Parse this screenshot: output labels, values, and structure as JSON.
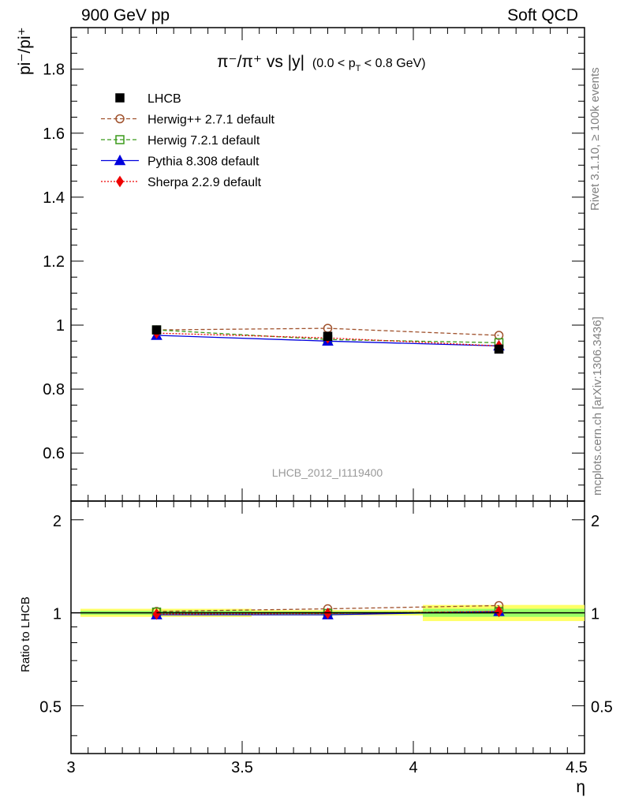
{
  "header": {
    "left": "900 GeV pp",
    "right": "Soft QCD"
  },
  "side_labels": {
    "rivet": "Rivet 3.1.10, ≥ 100k events",
    "mcplots": "mcplots.cern.ch [arXiv:1306.3436]"
  },
  "watermark": "LHCB_2012_I1119400",
  "colors": {
    "lhcb": "#000000",
    "herwigpp": "#a0522d",
    "herwig7": "#3a9a1a",
    "pythia": "#0000dd",
    "sherpa": "#ee0000",
    "band_outer": "#ffff66",
    "band_inner": "#99ff66"
  },
  "chart_data": [
    {
      "type": "line",
      "panel": "main",
      "title": "π⁻/π⁺ vs |y| (0.0 < p_T < 0.8 GeV)",
      "title_main": "π⁻/π⁺ vs |y|",
      "title_cut": "(0.0 < p",
      "title_cut_sub": "T",
      "title_cut_end": " < 0.8 GeV)",
      "ylabel": "pi⁻/pi⁺",
      "xlim": [
        3.0,
        4.5
      ],
      "ylim": [
        0.45,
        1.93
      ],
      "yticks": [
        "0.6",
        "0.8",
        "1",
        "1.2",
        "1.4",
        "1.6",
        "1.8"
      ],
      "ytick_values": [
        0.6,
        0.8,
        1.0,
        1.2,
        1.4,
        1.6,
        1.8
      ],
      "x": [
        3.25,
        3.75,
        4.25
      ],
      "series": [
        {
          "name": "LHCB",
          "values": [
            0.985,
            0.965,
            0.925
          ]
        },
        {
          "name": "Herwig++ 2.7.1 default",
          "values": [
            0.985,
            0.99,
            0.968
          ]
        },
        {
          "name": "Herwig 7.2.1 default",
          "values": [
            0.985,
            0.955,
            0.945
          ]
        },
        {
          "name": "Pythia 8.308 default",
          "values": [
            0.968,
            0.95,
            0.935
          ]
        },
        {
          "name": "Sherpa 2.2.9 default",
          "values": [
            0.975,
            0.96,
            0.935
          ]
        }
      ],
      "legend": "top-left"
    },
    {
      "type": "line",
      "panel": "ratio",
      "ylabel": "Ratio to LHCB",
      "xlabel": "η",
      "xlim": [
        3.0,
        4.5
      ],
      "ylim": [
        0.35,
        2.3
      ],
      "xticks": [
        "3",
        "3.5",
        "4",
        "4.5"
      ],
      "xtick_values": [
        3.0,
        3.5,
        4.0,
        4.5
      ],
      "yticks": [
        "0.5",
        "1",
        "2"
      ],
      "ytick_values": [
        0.5,
        1.0,
        2.0
      ],
      "x": [
        3.25,
        3.75,
        4.25
      ],
      "band": [
        {
          "xmin": 3.0,
          "xmax": 3.5,
          "outer": 0.03,
          "inner": 0.015
        },
        {
          "xmin": 3.5,
          "xmax": 4.0,
          "outer": 0.02,
          "inner": 0.01
        },
        {
          "xmin": 4.0,
          "xmax": 4.5,
          "outer": 0.06,
          "inner": 0.03
        }
      ],
      "series": [
        {
          "name": "LHCB",
          "values": [
            1.0,
            1.0,
            1.0
          ]
        },
        {
          "name": "Herwig++ 2.7.1 default",
          "values": [
            1.01,
            1.03,
            1.055
          ]
        },
        {
          "name": "Herwig 7.2.1 default",
          "values": [
            1.005,
            0.995,
            1.01
          ]
        },
        {
          "name": "Pythia 8.308 default",
          "values": [
            0.985,
            0.985,
            1.01
          ]
        },
        {
          "name": "Sherpa 2.2.9 default",
          "values": [
            0.99,
            0.995,
            1.01
          ]
        }
      ]
    }
  ]
}
